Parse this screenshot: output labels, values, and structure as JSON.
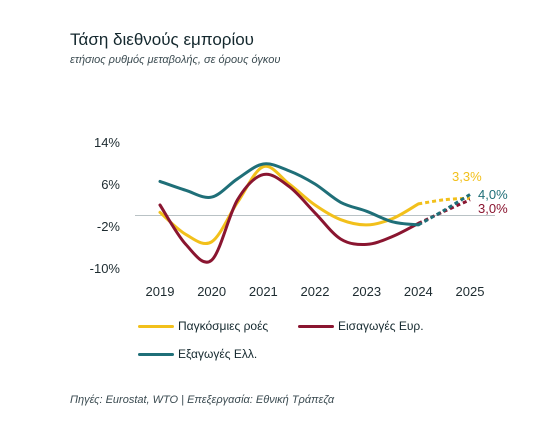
{
  "title": "Τάση διεθνούς εμπορίου",
  "subtitle": "ετήσιος ρυθμός μεταβολής, σε όρους όγκου",
  "source": "Πηγές: Eurostat, WTO | Επεξεργασία: Εθνική Τράπεζα",
  "legend": {
    "global": "Παγκόσμιες ροές",
    "eu": "Εισαγωγές Ευρ.",
    "gr": "Εξαγωγές Ελλ."
  },
  "labels": {
    "global_2025": "3,3%",
    "gr_2025": "4,0%",
    "eu_2025": "3,0%"
  },
  "colors": {
    "global": "#f2c01b",
    "eu": "#8a1530",
    "gr": "#1f6f78"
  },
  "chart_data": {
    "type": "line",
    "title": "Τάση διεθνούς εμπορίου",
    "subtitle": "ετήσιος ρυθμός μεταβολής, σε όρους όγκου",
    "x": [
      2019,
      2019.5,
      2020,
      2020.5,
      2021,
      2021.5,
      2022,
      2022.5,
      2023,
      2023.5,
      2024,
      2024.5,
      2025
    ],
    "x_ticks": [
      "2019",
      "2020",
      "2021",
      "2022",
      "2023",
      "2024",
      "2025"
    ],
    "y_ticks": [
      "14%",
      "6%",
      "-2%",
      "-10%"
    ],
    "y_tick_values": [
      14,
      6,
      -2,
      -10
    ],
    "ylim": [
      -10,
      14
    ],
    "dashed_from": 2024,
    "series": [
      {
        "name": "Παγκόσμιες ροές",
        "key": "global",
        "values": [
          0.6,
          -3.6,
          -5.0,
          2.5,
          9.3,
          6.0,
          2.0,
          -0.8,
          -1.8,
          -0.6,
          2.2,
          3.0,
          3.3
        ]
      },
      {
        "name": "Εισαγωγές Ευρ.",
        "key": "eu",
        "values": [
          2.0,
          -5.5,
          -8.5,
          3.0,
          7.8,
          5.5,
          0.5,
          -4.5,
          -5.5,
          -4.0,
          -1.5,
          0.8,
          3.0
        ]
      },
      {
        "name": "Εξαγωγές Ελλ.",
        "key": "gr",
        "values": [
          6.5,
          4.8,
          3.5,
          7.0,
          9.8,
          8.5,
          6.0,
          2.5,
          0.8,
          -1.2,
          -1.8,
          1.0,
          4.0
        ]
      }
    ]
  }
}
